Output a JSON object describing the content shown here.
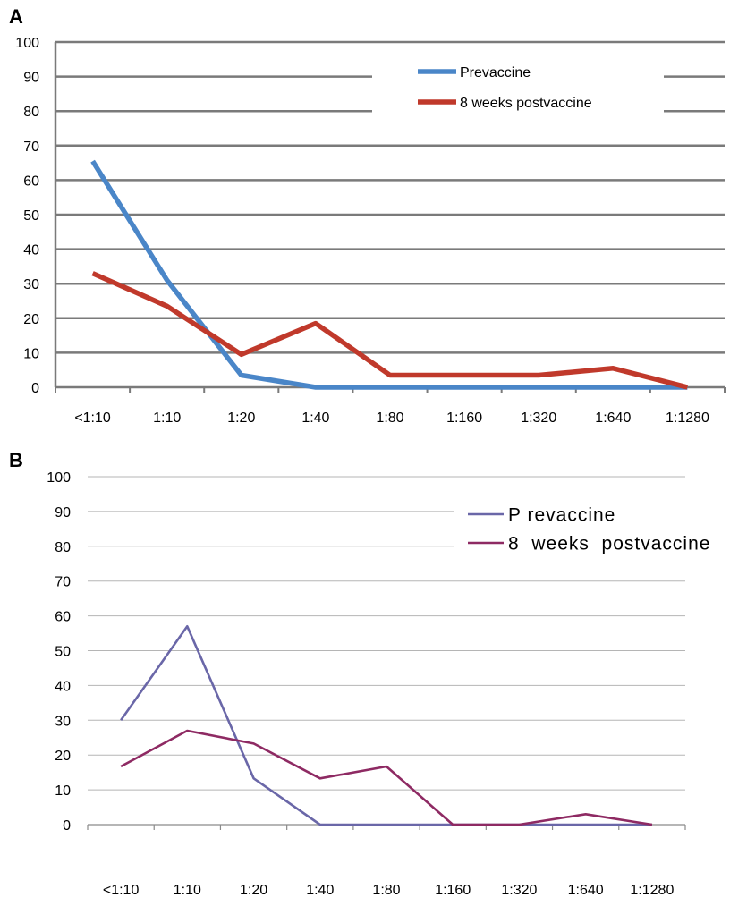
{
  "panels": [
    {
      "label": "A"
    },
    {
      "label": "B"
    }
  ],
  "chart_data": [
    {
      "type": "line",
      "categories": [
        "<1:10",
        "1:10",
        "1:20",
        "1:40",
        "1:80",
        "1:160",
        "1:320",
        "1:640",
        "1:1280"
      ],
      "ylim": [
        0,
        100
      ],
      "yticks": [
        "0",
        "10",
        "20",
        "30",
        "40",
        "50",
        "60",
        "70",
        "80",
        "90",
        "100"
      ],
      "grid": true,
      "legend": "top-right",
      "series": [
        {
          "name": "Prevaccine",
          "color": "#4a86c8",
          "values": [
            65.5,
            31,
            3.5,
            0,
            0,
            0,
            0,
            0,
            0
          ]
        },
        {
          "name": "8 weeks postvaccine",
          "color": "#c0392b",
          "values": [
            33,
            23.5,
            9.5,
            18.5,
            3.5,
            3.5,
            3.5,
            5.5,
            0
          ]
        }
      ]
    },
    {
      "type": "line",
      "categories": [
        "<1:10",
        "1:10",
        "1:20",
        "1:40",
        "1:80",
        "1:160",
        "1:320",
        "1:640",
        "1:1280"
      ],
      "ylim": [
        0,
        100
      ],
      "yticks": [
        "0",
        "10",
        "20",
        "30",
        "40",
        "50",
        "60",
        "70",
        "80",
        "90",
        "100"
      ],
      "grid": true,
      "legend": "top-right",
      "series": [
        {
          "name": "P revaccine",
          "color": "#6a67a8",
          "values": [
            30,
            57,
            13.3,
            0,
            0,
            0,
            0,
            0,
            0
          ]
        },
        {
          "name": "8  weeks  postvaccine",
          "color": "#8e2a63",
          "values": [
            16.7,
            27,
            23.3,
            13.3,
            16.7,
            0,
            0,
            3,
            0
          ]
        }
      ]
    }
  ]
}
